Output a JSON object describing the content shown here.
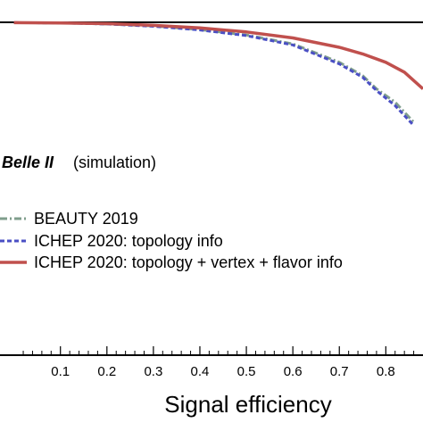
{
  "chart_data": {
    "type": "line",
    "xlabel": "Signal efficiency",
    "ylabel": "",
    "xlim": [
      -0.03,
      0.88
    ],
    "ylim": [
      0,
      1.0
    ],
    "x_ticks": [
      "0.1",
      "0.2",
      "0.3",
      "0.4",
      "0.5",
      "0.6",
      "0.7",
      "0.8"
    ],
    "x_tick_values": [
      0.1,
      0.2,
      0.3,
      0.4,
      0.5,
      0.6,
      0.7,
      0.8
    ],
    "annotation": {
      "experiment": "Belle II",
      "note": "(simulation)"
    },
    "legend_position": "center-left",
    "grid": false,
    "series": [
      {
        "name": "BEAUTY 2019",
        "style": "dashdot",
        "color": "#7f9e8c",
        "x": [
          0.0,
          0.1,
          0.2,
          0.3,
          0.4,
          0.5,
          0.6,
          0.7,
          0.75,
          0.78,
          0.82,
          0.86
        ],
        "y": [
          0.999,
          0.998,
          0.995,
          0.989,
          0.978,
          0.962,
          0.935,
          0.88,
          0.84,
          0.8,
          0.76,
          0.7
        ]
      },
      {
        "name": "ICHEP 2020: topology info",
        "style": "dashed",
        "color": "#4a4fc4",
        "x": [
          0.0,
          0.1,
          0.2,
          0.3,
          0.4,
          0.5,
          0.6,
          0.7,
          0.75,
          0.78,
          0.82,
          0.86
        ],
        "y": [
          0.999,
          0.998,
          0.995,
          0.988,
          0.977,
          0.96,
          0.932,
          0.875,
          0.835,
          0.795,
          0.75,
          0.69
        ]
      },
      {
        "name": "ICHEP 2020: topology + vertex + flavor info",
        "style": "solid",
        "color": "#c0504d",
        "x": [
          0.0,
          0.1,
          0.2,
          0.3,
          0.4,
          0.5,
          0.6,
          0.7,
          0.75,
          0.8,
          0.84,
          0.88
        ],
        "y": [
          0.999,
          0.998,
          0.996,
          0.991,
          0.983,
          0.971,
          0.953,
          0.925,
          0.905,
          0.88,
          0.85,
          0.8
        ]
      }
    ]
  }
}
